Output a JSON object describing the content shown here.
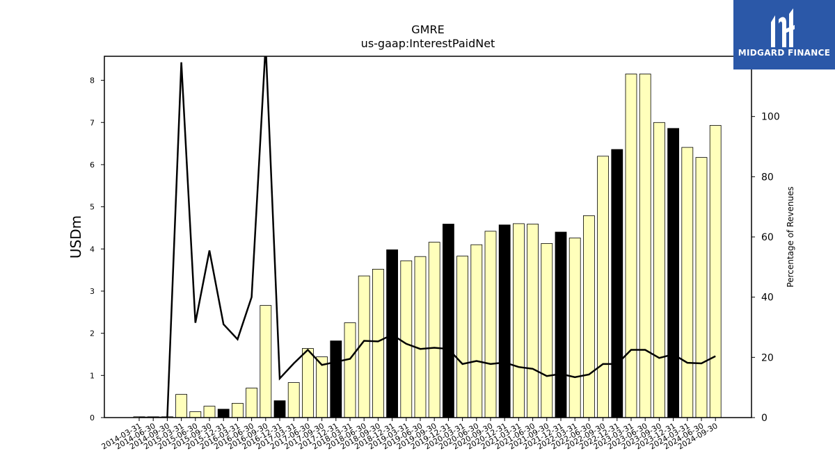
{
  "chart_data": {
    "type": "bar",
    "title": "GMRE",
    "subtitle": "us-gaap:InterestPaidNet",
    "ylabel": "USDm",
    "y2label": "Percentage of Revenues",
    "ylim": [
      0,
      8.57
    ],
    "y2lim": [
      0,
      120
    ],
    "yticks": [
      0,
      1,
      2,
      3,
      4,
      5,
      6,
      7,
      8
    ],
    "y2ticks": [
      0,
      20,
      40,
      60,
      80,
      100
    ],
    "grid": false,
    "colors": {
      "bar": "#ffffbb",
      "bar_highlight": "#000000",
      "line": "#000000"
    },
    "categories": [
      "2014-03-31",
      "2014-06-30",
      "2014-09-30",
      "2015-03-31",
      "2015-06-30",
      "2015-09-30",
      "2015-12-31",
      "2016-03-31",
      "2016-06-30",
      "2016-09-30",
      "2016-12-31",
      "2017-03-31",
      "2017-06-30",
      "2017-09-30",
      "2017-12-31",
      "2018-03-31",
      "2018-06-30",
      "2018-09-30",
      "2018-12-31",
      "2019-03-31",
      "2019-06-30",
      "2019-09-30",
      "2019-12-31",
      "2020-03-31",
      "2020-06-30",
      "2020-09-30",
      "2020-12-31",
      "2021-03-31",
      "2021-06-30",
      "2021-09-30",
      "2021-12-31",
      "2022-03-31",
      "2022-06-30",
      "2022-09-30",
      "2022-12-31",
      "2023-03-31",
      "2023-06-30",
      "2023-09-30",
      "2023-12-31",
      "2024-03-31",
      "2024-06-30",
      "2024-09-30"
    ],
    "series": [
      {
        "values": [
          0.02,
          0.02,
          0.02,
          0.55,
          0.14,
          0.27,
          0.2,
          0.34,
          0.7,
          2.66,
          0.4,
          0.83,
          1.64,
          1.44,
          1.82,
          2.25,
          3.36,
          3.52,
          3.98,
          3.72,
          3.82,
          4.16,
          4.59,
          3.83,
          4.1,
          4.42,
          4.57,
          4.6,
          4.59,
          4.13,
          4.4,
          4.26,
          4.79,
          6.2,
          6.36,
          8.15,
          8.15,
          7.0,
          6.86,
          6.41,
          6.17,
          6.93
        ]
      },
      {
        "values": [
          0,
          0,
          0,
          118,
          31.5,
          55.5,
          31,
          26,
          40,
          124,
          13,
          18,
          22.5,
          17.5,
          18.5,
          19.5,
          25.5,
          25.3,
          27.5,
          24.5,
          22.8,
          23.2,
          22.8,
          17.8,
          18.8,
          17.8,
          18.3,
          16.8,
          16.2,
          13.8,
          14.5,
          13.4,
          14.3,
          17.8,
          17.8,
          22.5,
          22.5,
          19.8,
          21,
          18.2,
          18,
          20.4
        ]
      }
    ],
    "highlight_indices": [
      6,
      10,
      14,
      18,
      22,
      26,
      30,
      34,
      38
    ]
  },
  "logo": {
    "text": "MIDGARD FINANCE"
  }
}
